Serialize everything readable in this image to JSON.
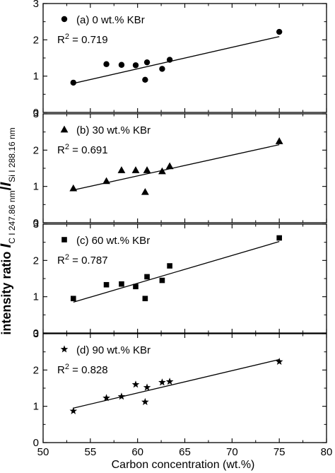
{
  "chart_data": {
    "type": "scatter",
    "xlabel": "Carbon concentration (wt.%)",
    "ylabel": {
      "prefix": "intensity ratio ",
      "i1": "I",
      "sub1": "C I 247.86 nm",
      "slash": "/",
      "i2": "I",
      "sub2": "Si I 288.16 nm"
    },
    "xlim": [
      50,
      80
    ],
    "xticks": [
      "50",
      "55",
      "60",
      "65",
      "70",
      "75",
      "80"
    ],
    "ylim": [
      0,
      3
    ],
    "yticks": [
      "0",
      "1",
      "2",
      "3"
    ],
    "grid": false,
    "panels": [
      {
        "legend_label": "(a) 0 wt.% KBr",
        "r2_label": "R",
        "r2_sup": "2",
        "r2_value": " = 0.719",
        "marker": "circle",
        "x": [
          53.2,
          56.7,
          58.3,
          59.8,
          60.8,
          61.0,
          62.6,
          63.4,
          75.0
        ],
        "y": [
          0.82,
          1.33,
          1.31,
          1.3,
          0.9,
          1.38,
          1.2,
          1.45,
          2.22
        ],
        "fit": {
          "x": [
            53.2,
            75.0
          ],
          "y": [
            0.8,
            2.09
          ]
        }
      },
      {
        "legend_label": "(b) 30 wt.% KBr",
        "r2_label": "R",
        "r2_sup": "2",
        "r2_value": " = 0.691",
        "marker": "triangle",
        "x": [
          53.2,
          56.7,
          58.3,
          59.8,
          60.8,
          61.0,
          62.6,
          63.4,
          75.0
        ],
        "y": [
          0.95,
          1.15,
          1.45,
          1.45,
          0.85,
          1.45,
          1.42,
          1.56,
          2.25
        ],
        "fit": {
          "x": [
            53.2,
            75.0
          ],
          "y": [
            0.9,
            2.15
          ]
        }
      },
      {
        "legend_label": "(c) 60 wt.% KBr",
        "r2_label": "R",
        "r2_sup": "2",
        "r2_value": " = 0.787",
        "marker": "square",
        "x": [
          53.2,
          56.7,
          58.3,
          59.8,
          60.8,
          61.0,
          62.6,
          63.4,
          75.0
        ],
        "y": [
          0.95,
          1.33,
          1.35,
          1.28,
          0.95,
          1.55,
          1.45,
          1.85,
          2.62
        ],
        "fit": {
          "x": [
            53.2,
            75.0
          ],
          "y": [
            0.85,
            2.52
          ]
        }
      },
      {
        "legend_label": "(d) 90 wt.% KBr",
        "r2_label": "R",
        "r2_sup": "2",
        "r2_value": " = 0.828",
        "marker": "star",
        "x": [
          53.2,
          56.7,
          58.3,
          59.8,
          60.8,
          61.0,
          62.6,
          63.4,
          75.0
        ],
        "y": [
          0.87,
          1.23,
          1.27,
          1.6,
          1.12,
          1.52,
          1.66,
          1.68,
          2.23
        ],
        "fit": {
          "x": [
            53.2,
            75.0
          ],
          "y": [
            0.95,
            2.29
          ]
        }
      }
    ]
  }
}
